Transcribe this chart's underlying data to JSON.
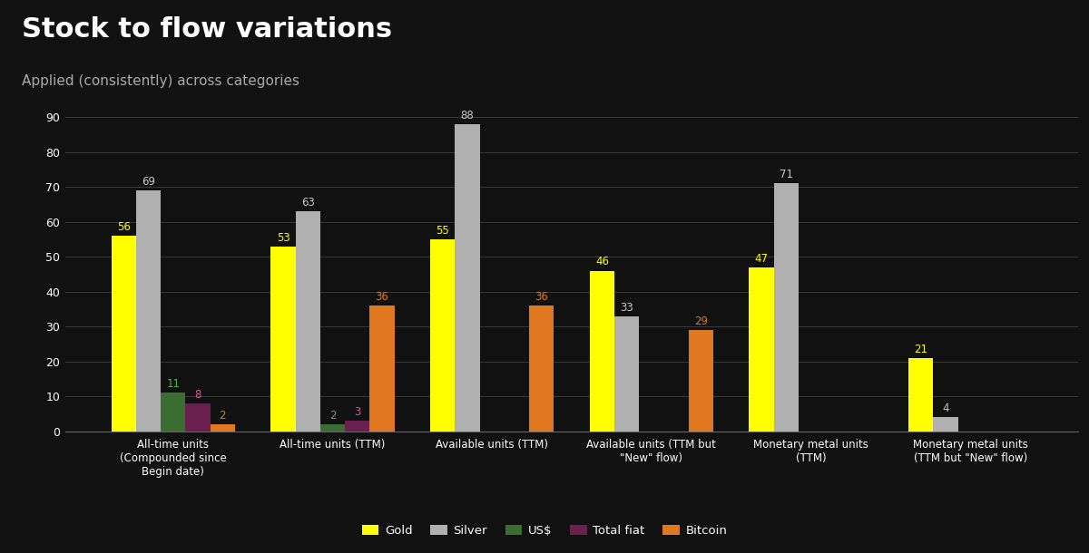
{
  "title": "Stock to flow variations",
  "subtitle": "Applied (consistently) across categories",
  "categories": [
    "All-time units\n(Compounded since\nBegin date)",
    "All-time units (TTM)",
    "Available units (TTM)",
    "Available units (TTM but\n\"New\" flow)",
    "Monetary metal units\n(TTM)",
    "Monetary metal units\n(TTM but \"New\" flow)"
  ],
  "series": {
    "Gold": [
      56,
      53,
      55,
      46,
      47,
      21
    ],
    "Silver": [
      69,
      63,
      88,
      33,
      71,
      4
    ],
    "US$": [
      11,
      2,
      0,
      0,
      0,
      0
    ],
    "Total fiat": [
      8,
      3,
      0,
      0,
      0,
      0
    ],
    "Bitcoin": [
      2,
      36,
      36,
      29,
      0,
      0
    ]
  },
  "colors": {
    "Gold": "#ffff00",
    "Silver": "#b0b0b0",
    "US$": "#3a6e30",
    "Total fiat": "#6b1f4e",
    "Bitcoin": "#e07820"
  },
  "label_colors": {
    "Gold": "#ffff00",
    "Silver": "#c8c8c8",
    "US$": "#5aaf50",
    "Total fiat": "#d060a0",
    "Bitcoin": "#e07820"
  },
  "background_color": "#111111",
  "text_color": "#ffffff",
  "subtitle_color": "#aaaaaa",
  "grid_color": "#3a3a3a",
  "ylim": [
    0,
    95
  ],
  "yticks": [
    0,
    10,
    20,
    30,
    40,
    50,
    60,
    70,
    80,
    90
  ],
  "bar_width": 0.155,
  "title_fontsize": 22,
  "subtitle_fontsize": 11,
  "label_fontsize": 8.5,
  "tick_fontsize": 9,
  "xtick_fontsize": 8.5,
  "legend_fontsize": 9.5
}
